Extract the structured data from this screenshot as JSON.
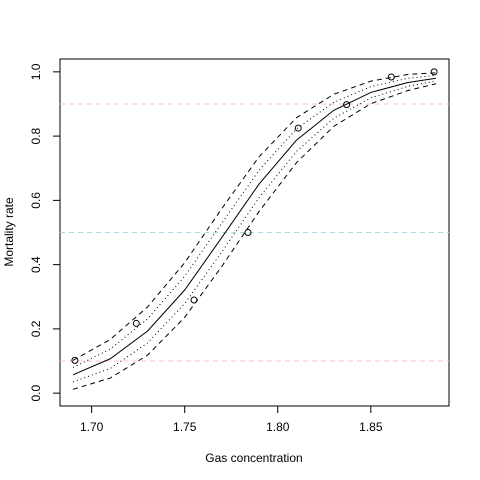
{
  "chart_data": {
    "type": "dose-response",
    "x_label": "Gas concentration",
    "y_label": "Mortality rate",
    "xlim": [
      1.683,
      1.892
    ],
    "ylim": [
      -0.04,
      1.04
    ],
    "xticks": [
      {
        "value": 1.7,
        "label": "1.70"
      },
      {
        "value": 1.75,
        "label": "1.75"
      },
      {
        "value": 1.8,
        "label": "1.80"
      },
      {
        "value": 1.85,
        "label": "1.85"
      }
    ],
    "yticks": [
      {
        "value": 0,
        "label": "0.0"
      },
      0.2,
      0.4,
      0.6,
      0.8,
      {
        "value": 1,
        "label": "1.0"
      }
    ],
    "reference_lines": [
      {
        "value": 0.1,
        "color": "#ffc0cb"
      },
      {
        "value": 0.5,
        "color": "#add8e6"
      },
      {
        "value": 0.9,
        "color": "#ffc0cb"
      }
    ],
    "observed": {
      "x": [
        1.691,
        1.724,
        1.755,
        1.784,
        1.811,
        1.837,
        1.861,
        1.884
      ],
      "values": [
        0.102,
        0.217,
        0.29,
        0.5,
        0.825,
        0.898,
        0.984,
        1.0
      ],
      "color": "#000000"
    },
    "curve_x": [
      1.69,
      1.71,
      1.73,
      1.75,
      1.77,
      1.79,
      1.81,
      1.83,
      1.85,
      1.87,
      1.885
    ],
    "fit": {
      "values": [
        0.057,
        0.107,
        0.193,
        0.321,
        0.485,
        0.651,
        0.787,
        0.88,
        0.936,
        0.967,
        0.98
      ],
      "dash": "solid"
    },
    "inner_band": [
      {
        "values": [
          0.08,
          0.137,
          0.231,
          0.364,
          0.53,
          0.694,
          0.822,
          0.905,
          0.954,
          0.98,
          0.989
        ],
        "dash": "dotted"
      },
      {
        "values": [
          0.035,
          0.077,
          0.156,
          0.279,
          0.44,
          0.609,
          0.752,
          0.855,
          0.919,
          0.955,
          0.972
        ],
        "dash": "dotted"
      }
    ],
    "outer_band": [
      {
        "values": [
          0.102,
          0.167,
          0.268,
          0.406,
          0.575,
          0.736,
          0.857,
          0.93,
          0.971,
          0.992,
          0.997
        ],
        "dash": "dashed"
      },
      {
        "values": [
          0.012,
          0.047,
          0.118,
          0.236,
          0.395,
          0.566,
          0.717,
          0.83,
          0.901,
          0.942,
          0.963
        ],
        "dash": "dashed"
      }
    ]
  }
}
